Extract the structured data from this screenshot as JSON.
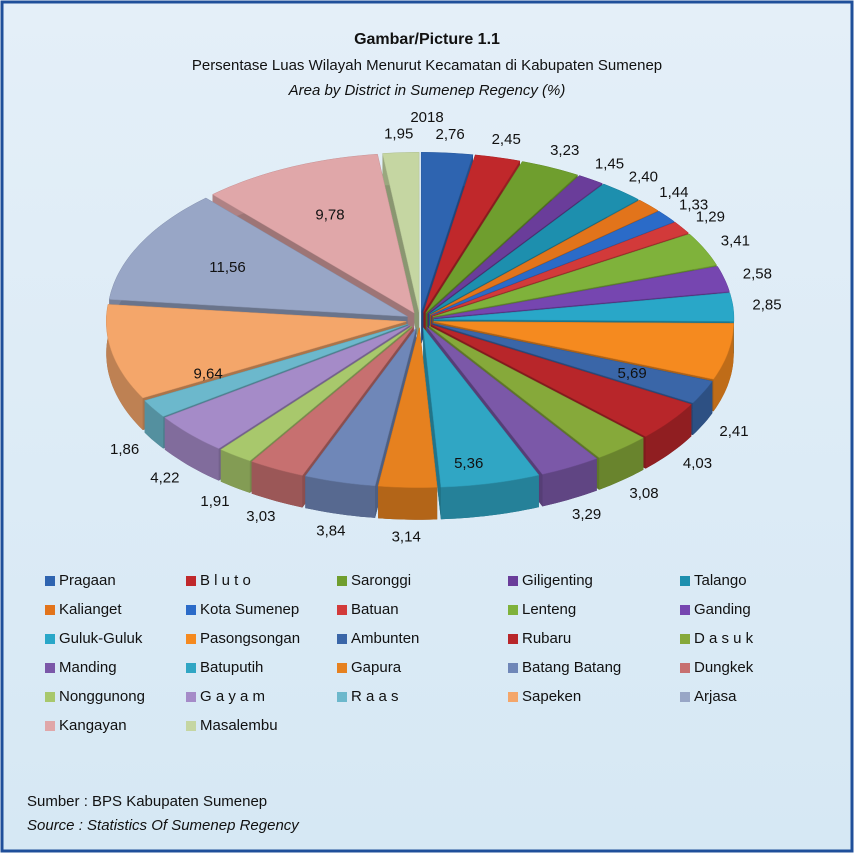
{
  "chart_data": {
    "type": "pie",
    "title": "Gambar/Picture 1.1",
    "subtitle": "Persentase Luas Wilayah Menurut Kecamatan di Kabupaten Sumenep",
    "subtitle_en": "Area by District in Sumenep Regency (%)",
    "year": "2018",
    "categories": [
      "Pragaan",
      "B l u t o",
      "Saronggi",
      "Giligenting",
      "Talango",
      "Kalianget",
      "Kota Sumenep",
      "Batuan",
      "Lenteng",
      "Ganding",
      "Guluk-Guluk",
      "Pasongsongan",
      "Ambunten",
      "Rubaru",
      "D a s u k",
      "Manding",
      "Batuputih",
      "Gapura",
      "Batang Batang",
      "Dungkek",
      "Nonggunong",
      "G a y a m",
      "R a a s",
      "Sapeken",
      "Arjasa",
      "Kangayan",
      "Masalembu"
    ],
    "values": [
      2.76,
      2.45,
      3.23,
      1.45,
      2.4,
      1.44,
      1.33,
      1.29,
      3.41,
      2.58,
      2.85,
      5.69,
      2.41,
      4.03,
      3.08,
      3.29,
      5.36,
      3.14,
      3.84,
      3.03,
      1.91,
      4.22,
      1.86,
      9.64,
      11.56,
      9.78,
      1.95
    ],
    "value_labels": [
      "2,76",
      "2,45",
      "3,23",
      "1,45",
      "2,40",
      "1,44",
      "1,33",
      "1,29",
      "3,41",
      "2,58",
      "2,85",
      "5,69",
      "2,41",
      "4,03",
      "3,08",
      "3,29",
      "5,36",
      "3,14",
      "3,84",
      "3,03",
      "1,91",
      "4,22",
      "1,86",
      "9,64",
      "11,56",
      "9,78",
      "1,95"
    ],
    "colors": [
      "#2e64b0",
      "#c0282b",
      "#6f9e2e",
      "#6a3d9a",
      "#1d8fae",
      "#e2741b",
      "#2b6bc8",
      "#d23a3a",
      "#7fb23b",
      "#7646b0",
      "#29a7c8",
      "#f58a1f",
      "#3a66a8",
      "#b8262a",
      "#86a93a",
      "#7b58a8",
      "#30a6c4",
      "#e6811f",
      "#6f87b8",
      "#c77070",
      "#a8c86c",
      "#a58bc8",
      "#6cb8cc",
      "#f4a66a",
      "#98a6c6",
      "#e0a7a9",
      "#c5d6a2"
    ],
    "source": "Sumber : BPS Kabupaten Sumenep",
    "source_en": "Source : Statistics Of Sumenep Regency"
  }
}
